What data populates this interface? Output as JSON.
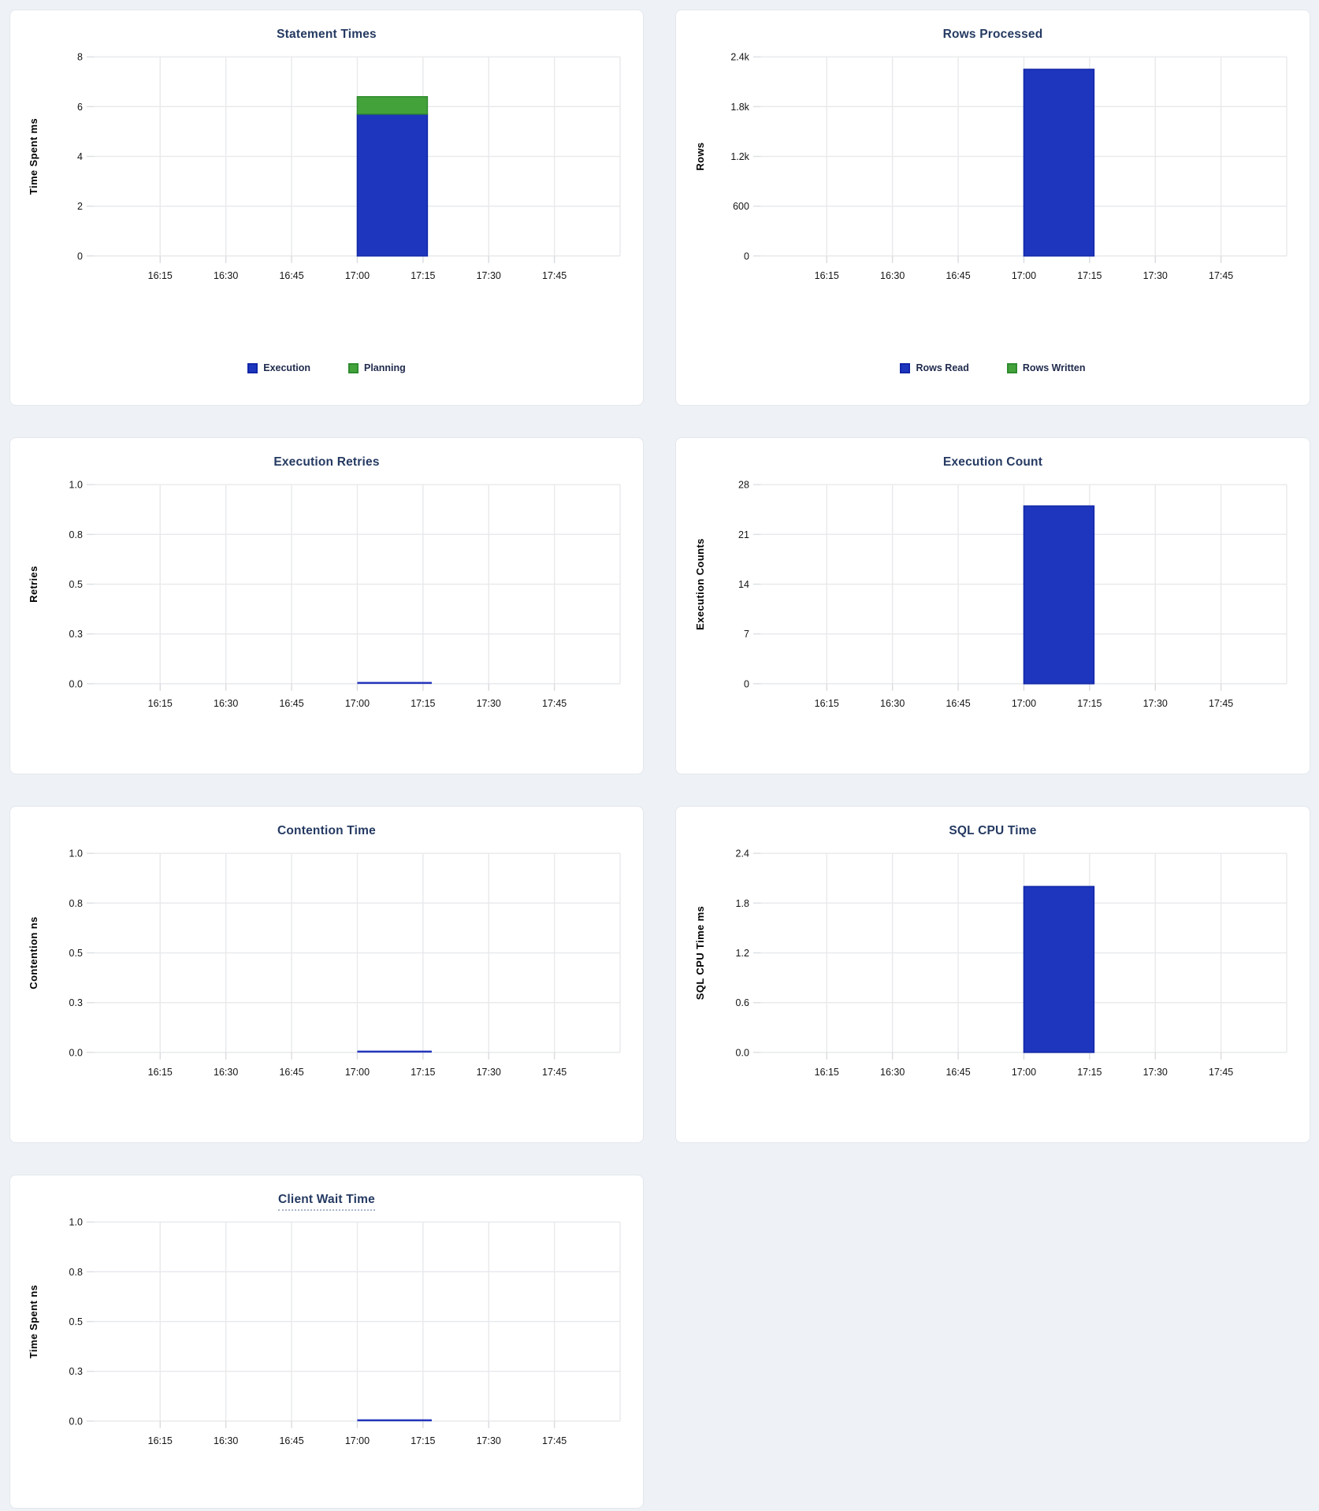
{
  "page": {
    "background_color": "#eef2f6",
    "card_background": "#ffffff"
  },
  "colors": {
    "title_text": "#253a62",
    "grid_line": "#e7e9ec",
    "x_tick_stub": "#d8dbdf",
    "y_tick_stub": "#dcdfe3",
    "tick_text": "#141414",
    "zero_line": "#2335bb",
    "legend_text": "#1f2a4c",
    "blue": {
      "fill": "#1e36bd",
      "stroke": "#1226a8"
    },
    "green": {
      "fill": "#44a23b",
      "stroke": "#2f8c2f"
    }
  },
  "x_axis": {
    "range_start": "16:00",
    "range_end": "18:00",
    "tick_labels": [
      "16:15",
      "16:30",
      "16:45",
      "17:00",
      "17:15",
      "17:30",
      "17:45"
    ]
  },
  "chart_data": [
    {
      "type": "bar",
      "stacked": true,
      "title": "Statement Times",
      "ylabel": "Time Spent ms",
      "ymax": 8,
      "ytick_labels": [
        "0",
        "2",
        "4",
        "6",
        "8"
      ],
      "xlabel": "",
      "grid": true,
      "legend_position": "bottom",
      "data_window": {
        "start": "17:00",
        "end": "17:16"
      },
      "series": [
        {
          "name": "Execution",
          "color": "blue",
          "value": 5.7
        },
        {
          "name": "Planning",
          "color": "green",
          "value": 0.7
        }
      ]
    },
    {
      "type": "bar",
      "stacked": true,
      "title": "Rows Processed",
      "ylabel": "Rows",
      "ymax": 2400,
      "ytick_labels": [
        "0",
        "600",
        "1.2k",
        "1.8k",
        "2.4k"
      ],
      "xlabel": "",
      "grid": true,
      "legend_position": "bottom",
      "data_window": {
        "start": "17:00",
        "end": "17:16"
      },
      "series": [
        {
          "name": "Rows Read",
          "color": "blue",
          "value": 2250
        },
        {
          "name": "Rows Written",
          "color": "green",
          "value": 0
        }
      ]
    },
    {
      "type": "line",
      "title": "Execution Retries",
      "ylabel": "Retries",
      "ymax": 1,
      "ytick_labels": [
        "0.0",
        "0.3",
        "0.5",
        "0.8",
        "1.0"
      ],
      "xlabel": "",
      "grid": true,
      "data_window": {
        "start": "17:00",
        "end": "17:17"
      },
      "series": [
        {
          "name": "Retries",
          "color": "blue",
          "value": 0
        }
      ]
    },
    {
      "type": "bar",
      "title": "Execution Count",
      "ylabel": "Execution Counts",
      "ymax": 28,
      "ytick_labels": [
        "0",
        "7",
        "14",
        "21",
        "28"
      ],
      "xlabel": "",
      "grid": true,
      "data_window": {
        "start": "17:00",
        "end": "17:16"
      },
      "series": [
        {
          "name": "Execution Count",
          "color": "blue",
          "value": 25
        }
      ]
    },
    {
      "type": "line",
      "title": "Contention Time",
      "ylabel": "Contention ns",
      "ymax": 1,
      "ytick_labels": [
        "0.0",
        "0.3",
        "0.5",
        "0.8",
        "1.0"
      ],
      "xlabel": "",
      "grid": true,
      "data_window": {
        "start": "17:00",
        "end": "17:17"
      },
      "series": [
        {
          "name": "Contention",
          "color": "blue",
          "value": 0
        }
      ]
    },
    {
      "type": "bar",
      "title": "SQL CPU Time",
      "ylabel": "SQL CPU Time ms",
      "ymax": 2.4,
      "ytick_labels": [
        "0.0",
        "0.6",
        "1.2",
        "1.8",
        "2.4"
      ],
      "xlabel": "",
      "grid": true,
      "data_window": {
        "start": "17:00",
        "end": "17:16"
      },
      "series": [
        {
          "name": "SQL CPU Time",
          "color": "blue",
          "value": 2.0
        }
      ]
    },
    {
      "type": "line",
      "title": "Client Wait Time",
      "title_has_tooltip_underline": true,
      "ylabel": "Time Spent ns",
      "ymax": 1,
      "ytick_labels": [
        "0.0",
        "0.3",
        "0.5",
        "0.8",
        "1.0"
      ],
      "xlabel": "",
      "grid": true,
      "data_window": {
        "start": "17:00",
        "end": "17:17"
      },
      "series": [
        {
          "name": "Client Wait",
          "color": "blue",
          "value": 0
        }
      ]
    }
  ]
}
